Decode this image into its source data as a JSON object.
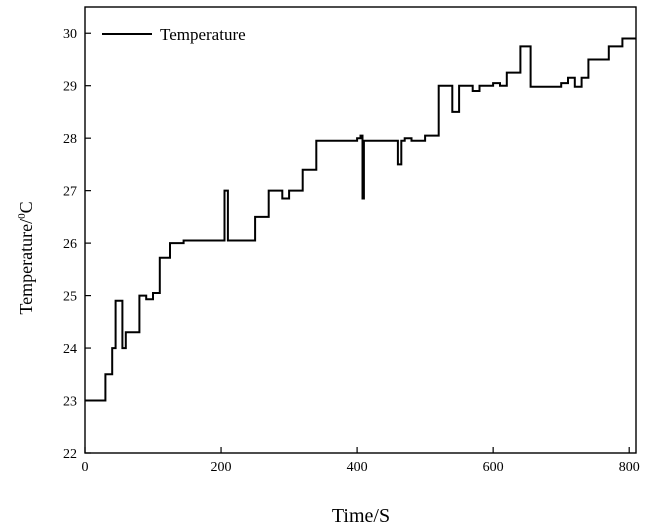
{
  "chart_data": {
    "type": "line",
    "title": "",
    "xlabel": "Time/S",
    "ylabel_main": "Temperature/",
    "ylabel_superscript": "0",
    "ylabel_unit": "C",
    "xlim": [
      0,
      810
    ],
    "ylim": [
      22,
      30.5
    ],
    "xticks": [
      0,
      200,
      400,
      600,
      800
    ],
    "yticks": [
      22,
      23,
      24,
      25,
      26,
      27,
      28,
      29,
      30
    ],
    "xtick_labels": [
      "0",
      "200",
      "400",
      "600",
      "800"
    ],
    "ytick_labels": [
      "22",
      "23",
      "24",
      "25",
      "26",
      "27",
      "28",
      "29",
      "30"
    ],
    "grid": false,
    "legend_position": "top-left",
    "line_color": "#000000",
    "series": [
      {
        "name": "Temperature",
        "x": [
          0,
          10,
          20,
          30,
          35,
          40,
          45,
          50,
          55,
          60,
          70,
          80,
          90,
          100,
          110,
          115,
          125,
          135,
          145,
          160,
          180,
          200,
          205,
          210,
          230,
          250,
          260,
          270,
          280,
          290,
          300,
          310,
          320,
          330,
          340,
          360,
          380,
          395,
          400,
          405,
          408,
          410,
          412,
          420,
          430,
          450,
          460,
          465,
          470,
          480,
          490,
          500,
          510,
          520,
          530,
          540,
          550,
          560,
          570,
          580,
          590,
          600,
          610,
          620,
          630,
          640,
          650,
          655,
          660,
          680,
          700,
          710,
          720,
          730,
          740,
          750,
          760,
          770,
          780,
          790,
          800,
          810
        ],
        "y": [
          23.0,
          23.0,
          23.0,
          23.5,
          23.5,
          24.0,
          24.9,
          24.9,
          24.0,
          24.3,
          24.3,
          25.0,
          24.93,
          25.05,
          25.72,
          25.72,
          26.0,
          26.0,
          26.05,
          26.05,
          26.05,
          26.05,
          27.0,
          26.05,
          26.05,
          26.5,
          26.5,
          27.0,
          27.0,
          26.85,
          27.0,
          27.0,
          27.4,
          27.4,
          27.95,
          27.95,
          27.95,
          27.95,
          28.0,
          28.05,
          26.85,
          27.95,
          27.95,
          27.95,
          27.95,
          27.95,
          27.5,
          27.95,
          28.0,
          27.95,
          27.95,
          28.05,
          28.05,
          29.0,
          29.0,
          28.5,
          29.0,
          29.0,
          28.9,
          29.0,
          29.0,
          29.05,
          29.0,
          29.25,
          29.25,
          29.75,
          29.75,
          28.98,
          28.98,
          28.98,
          29.05,
          29.15,
          28.98,
          29.15,
          29.5,
          29.5,
          29.5,
          29.75,
          29.75,
          29.9,
          29.9,
          29.9
        ]
      }
    ]
  }
}
